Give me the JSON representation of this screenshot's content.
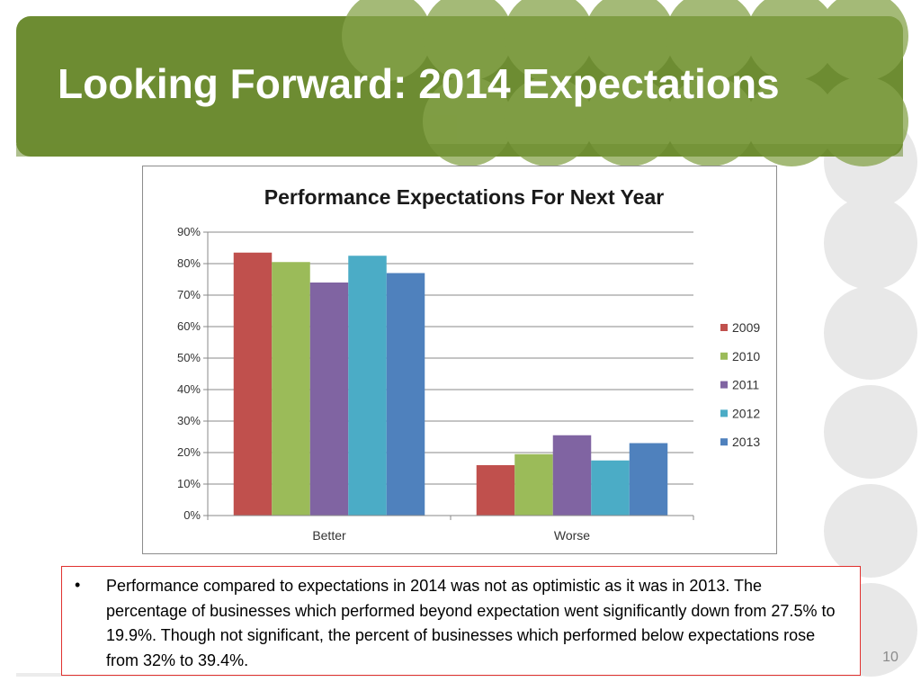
{
  "slide": {
    "title": "Looking Forward: 2014 Expectations",
    "slide_number": "10",
    "bullet_text": "Performance compared to expectations in 2014 was not as optimistic as it was in 2013. The percentage of businesses which performed beyond expectation went significantly down from 27.5% to 19.9%. Though not significant, the percent of businesses which performed below expectations rose from 32% to 39.4%.",
    "bullet_marker": "•"
  },
  "colors": {
    "header_green": "#6d8c32",
    "bubble_green": "#86a34a",
    "bubble_gray": "#e6e6e6",
    "bullet_border": "#e0312f"
  },
  "chart_data": {
    "type": "bar",
    "title": "Performance Expectations For Next Year",
    "categories": [
      "Better",
      "Worse"
    ],
    "series": [
      {
        "name": "2009",
        "values": [
          83.5,
          16
        ],
        "color": "#c0504d"
      },
      {
        "name": "2010",
        "values": [
          80.5,
          19.5
        ],
        "color": "#9bbb59"
      },
      {
        "name": "2011",
        "values": [
          74,
          25.5
        ],
        "color": "#8064a2"
      },
      {
        "name": "2012",
        "values": [
          82.5,
          17.5
        ],
        "color": "#4bacc6"
      },
      {
        "name": "2013",
        "values": [
          77,
          23
        ],
        "color": "#4f81bd"
      }
    ],
    "ylim": [
      0,
      90
    ],
    "yticks": [
      "0%",
      "10%",
      "20%",
      "30%",
      "40%",
      "50%",
      "60%",
      "70%",
      "80%",
      "90%"
    ],
    "grid": true,
    "legend": "right"
  }
}
